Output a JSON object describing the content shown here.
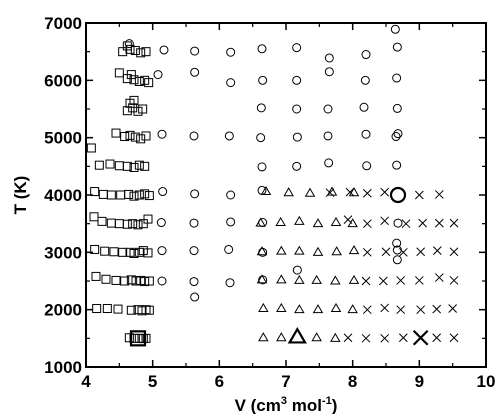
{
  "chart_data": {
    "type": "scatter",
    "xlabel_main": "V (cm",
    "xlabel_sup1": "3",
    "xlabel_mid": " mol",
    "xlabel_sup2": "-1",
    "xlabel_end": ")",
    "ylabel": "T (K)",
    "xlim": [
      4,
      10
    ],
    "ylim": [
      1000,
      7000
    ],
    "xticks": [
      4,
      5,
      6,
      7,
      8,
      9,
      10
    ],
    "yticks": [
      1000,
      2000,
      3000,
      4000,
      5000,
      6000,
      7000
    ],
    "grid": false,
    "series": [
      {
        "marker": "square",
        "points": [
          [
            4.65,
            1510
          ],
          [
            4.72,
            1500
          ],
          [
            4.8,
            1500
          ],
          [
            4.86,
            1495
          ],
          [
            4.9,
            1500
          ],
          [
            4.16,
            2020
          ],
          [
            4.32,
            2020
          ],
          [
            4.48,
            2010
          ],
          [
            4.68,
            1990
          ],
          [
            4.78,
            2000
          ],
          [
            4.84,
            1980
          ],
          [
            4.9,
            2000
          ],
          [
            4.95,
            1990
          ],
          [
            4.15,
            2580
          ],
          [
            4.3,
            2530
          ],
          [
            4.45,
            2510
          ],
          [
            4.58,
            2500
          ],
          [
            4.68,
            2520
          ],
          [
            4.75,
            2500
          ],
          [
            4.82,
            2510
          ],
          [
            4.88,
            2490
          ],
          [
            4.95,
            2500
          ],
          [
            4.13,
            3050
          ],
          [
            4.28,
            3020
          ],
          [
            4.42,
            3010
          ],
          [
            4.55,
            3000
          ],
          [
            4.66,
            3000
          ],
          [
            4.72,
            2980
          ],
          [
            4.8,
            3000
          ],
          [
            4.86,
            3030
          ],
          [
            4.93,
            2990
          ],
          [
            4.12,
            3620
          ],
          [
            4.24,
            3540
          ],
          [
            4.38,
            3510
          ],
          [
            4.5,
            3500
          ],
          [
            4.62,
            3490
          ],
          [
            4.7,
            3500
          ],
          [
            4.78,
            3480
          ],
          [
            4.86,
            3500
          ],
          [
            4.93,
            3580
          ],
          [
            4.13,
            4060
          ],
          [
            4.26,
            4010
          ],
          [
            4.38,
            4000
          ],
          [
            4.52,
            4000
          ],
          [
            4.64,
            4010
          ],
          [
            4.72,
            3980
          ],
          [
            4.8,
            4000
          ],
          [
            4.88,
            4020
          ],
          [
            4.95,
            3990
          ],
          [
            4.08,
            4820
          ],
          [
            4.2,
            4520
          ],
          [
            4.36,
            4540
          ],
          [
            4.5,
            4510
          ],
          [
            4.62,
            4500
          ],
          [
            4.72,
            4480
          ],
          [
            4.8,
            4520
          ],
          [
            4.88,
            4500
          ],
          [
            4.45,
            5080
          ],
          [
            4.58,
            5020
          ],
          [
            4.66,
            5040
          ],
          [
            4.74,
            5010
          ],
          [
            4.82,
            4980
          ],
          [
            4.9,
            5030
          ],
          [
            4.62,
            5470
          ],
          [
            4.7,
            5520
          ],
          [
            4.78,
            5460
          ],
          [
            4.85,
            5500
          ],
          [
            4.72,
            5650
          ],
          [
            4.66,
            5600
          ],
          [
            4.5,
            6130
          ],
          [
            4.62,
            6030
          ],
          [
            4.72,
            6010
          ],
          [
            4.8,
            5980
          ],
          [
            4.88,
            6000
          ],
          [
            4.94,
            5960
          ],
          [
            4.68,
            6100
          ],
          [
            4.55,
            6500
          ],
          [
            4.66,
            6540
          ],
          [
            4.74,
            6520
          ],
          [
            4.82,
            6480
          ],
          [
            4.9,
            6500
          ],
          [
            4.62,
            6600
          ]
        ]
      },
      {
        "marker": "circle",
        "points": [
          [
            4.65,
            6640
          ],
          [
            5.17,
            6530
          ],
          [
            5.63,
            6510
          ],
          [
            6.17,
            6490
          ],
          [
            6.64,
            6550
          ],
          [
            7.16,
            6570
          ],
          [
            7.65,
            6390
          ],
          [
            8.2,
            6450
          ],
          [
            8.64,
            6890
          ],
          [
            8.67,
            6580
          ],
          [
            5.08,
            6100
          ],
          [
            5.63,
            6140
          ],
          [
            6.17,
            5960
          ],
          [
            6.65,
            6000
          ],
          [
            7.16,
            6000
          ],
          [
            7.65,
            6150
          ],
          [
            8.19,
            6000
          ],
          [
            8.66,
            6040
          ],
          [
            6.63,
            5520
          ],
          [
            7.16,
            5500
          ],
          [
            7.63,
            5500
          ],
          [
            8.17,
            5530
          ],
          [
            8.67,
            5510
          ],
          [
            5.14,
            5060
          ],
          [
            5.62,
            5030
          ],
          [
            6.15,
            5030
          ],
          [
            6.62,
            5000
          ],
          [
            7.17,
            5010
          ],
          [
            7.63,
            5030
          ],
          [
            8.2,
            5060
          ],
          [
            8.68,
            5070
          ],
          [
            8.65,
            5020
          ],
          [
            6.64,
            4490
          ],
          [
            7.16,
            4500
          ],
          [
            7.64,
            4560
          ],
          [
            8.21,
            4510
          ],
          [
            8.66,
            4520
          ],
          [
            5.15,
            4060
          ],
          [
            5.63,
            4020
          ],
          [
            6.17,
            4000
          ],
          [
            6.64,
            4080
          ],
          [
            5.13,
            3520
          ],
          [
            5.62,
            3510
          ],
          [
            6.17,
            3530
          ],
          [
            6.65,
            3520
          ],
          [
            8.68,
            3510
          ],
          [
            5.14,
            3030
          ],
          [
            5.62,
            3030
          ],
          [
            6.14,
            3050
          ],
          [
            6.65,
            3000
          ],
          [
            8.66,
            3160
          ],
          [
            8.67,
            3040
          ],
          [
            8.67,
            2870
          ],
          [
            5.14,
            2500
          ],
          [
            5.62,
            2490
          ],
          [
            6.16,
            2470
          ],
          [
            6.65,
            2520
          ],
          [
            7.17,
            2690
          ],
          [
            5.63,
            2220
          ]
        ]
      },
      {
        "marker": "triangle",
        "points": [
          [
            6.7,
            4060
          ],
          [
            7.04,
            4040
          ],
          [
            7.36,
            4030
          ],
          [
            7.69,
            4050
          ],
          [
            8.02,
            4040
          ],
          [
            6.62,
            3510
          ],
          [
            6.92,
            3520
          ],
          [
            7.2,
            3540
          ],
          [
            7.48,
            3500
          ],
          [
            7.75,
            3520
          ],
          [
            8.0,
            3500
          ],
          [
            6.64,
            3010
          ],
          [
            6.93,
            3020
          ],
          [
            7.2,
            3020
          ],
          [
            7.48,
            3000
          ],
          [
            7.76,
            3010
          ],
          [
            8.02,
            3030
          ],
          [
            6.64,
            2520
          ],
          [
            6.93,
            2520
          ],
          [
            7.2,
            2510
          ],
          [
            7.46,
            2510
          ],
          [
            7.74,
            2500
          ],
          [
            8.02,
            2510
          ],
          [
            6.66,
            2020
          ],
          [
            6.93,
            2020
          ],
          [
            7.2,
            2000
          ],
          [
            7.48,
            2000
          ],
          [
            7.75,
            2020
          ],
          [
            8.0,
            2000
          ],
          [
            6.66,
            1510
          ],
          [
            6.93,
            1510
          ],
          [
            7.46,
            1510
          ],
          [
            7.74,
            1500
          ]
        ]
      },
      {
        "marker": "cross",
        "points": [
          [
            7.66,
            4040
          ],
          [
            7.96,
            4050
          ],
          [
            8.22,
            4030
          ],
          [
            8.48,
            4050
          ],
          [
            9.0,
            4000
          ],
          [
            9.3,
            4010
          ],
          [
            7.93,
            3570
          ],
          [
            8.22,
            3500
          ],
          [
            8.48,
            3550
          ],
          [
            8.8,
            3500
          ],
          [
            9.05,
            3510
          ],
          [
            9.3,
            3510
          ],
          [
            9.52,
            3510
          ],
          [
            8.22,
            3000
          ],
          [
            8.5,
            3010
          ],
          [
            8.76,
            3000
          ],
          [
            9.02,
            3010
          ],
          [
            9.27,
            3030
          ],
          [
            9.52,
            3010
          ],
          [
            8.2,
            2500
          ],
          [
            8.46,
            2500
          ],
          [
            8.72,
            2510
          ],
          [
            9.0,
            2510
          ],
          [
            9.3,
            2560
          ],
          [
            9.52,
            2510
          ],
          [
            8.22,
            2000
          ],
          [
            8.48,
            2030
          ],
          [
            8.72,
            2000
          ],
          [
            9.02,
            2000
          ],
          [
            9.26,
            2010
          ],
          [
            9.5,
            2020
          ],
          [
            7.93,
            1510
          ],
          [
            8.2,
            1500
          ],
          [
            8.48,
            1500
          ],
          [
            8.76,
            1510
          ],
          [
            9.26,
            1510
          ],
          [
            9.52,
            1510
          ]
        ]
      }
    ],
    "highlights": [
      {
        "marker": "square",
        "x": 4.78,
        "y": 1500
      },
      {
        "marker": "circle",
        "x": 8.68,
        "y": 4000
      },
      {
        "marker": "triangle",
        "x": 7.17,
        "y": 1520
      },
      {
        "marker": "cross",
        "x": 9.02,
        "y": 1510
      }
    ]
  }
}
